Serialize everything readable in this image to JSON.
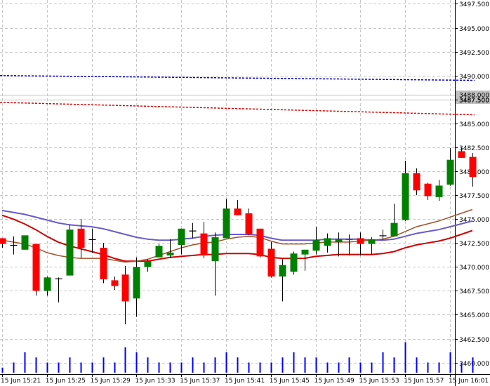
{
  "chart_data": {
    "type": "candlestick",
    "grid": true,
    "colors": {
      "background": "#ffffff",
      "grid": "#c8c8c8",
      "bull": "#008000",
      "bear": "#ff0000",
      "doji": "#000000",
      "volume": "#0000ff",
      "ma_fast": "#a0522d",
      "ma_mid": "#d00000",
      "ma_slow": "#6a5acd",
      "level_upper": "#0000cc",
      "level_lower": "#dd0000"
    },
    "y_ticks": [
      "3497.500",
      "3495.000",
      "3492.500",
      "3490.000",
      "3487.500",
      "3485.000",
      "3482.500",
      "3480.000",
      "3477.500",
      "3475.000",
      "3472.500",
      "3470.000",
      "3467.500",
      "3465.000",
      "3462.500",
      "3460.000"
    ],
    "ylim": [
      3458.8,
      3497.9
    ],
    "x_ticks": [
      {
        "label": "15 Jun 15:21",
        "index": 0
      },
      {
        "label": "15 Jun 15:25",
        "index": 4
      },
      {
        "label": "15 Jun 15:29",
        "index": 8
      },
      {
        "label": "15 Jun 15:33",
        "index": 12
      },
      {
        "label": "15 Jun 15:37",
        "index": 16
      },
      {
        "label": "15 Jun 15:41",
        "index": 20
      },
      {
        "label": "15 Jun 15:45",
        "index": 24
      },
      {
        "label": "15 Jun 15:49",
        "index": 28
      },
      {
        "label": "15 Jun 15:53",
        "index": 32
      },
      {
        "label": "15 Jun 15:57",
        "index": 36
      },
      {
        "label": "15 Jun 16:01",
        "index": 40
      }
    ],
    "price_labels": [
      {
        "text": "3488.000",
        "value": 3488.0
      },
      {
        "text": "3487.500",
        "value": 3487.5
      }
    ],
    "candles": [
      {
        "o": 3473.0,
        "h": 3473.0,
        "l": 3472.0,
        "c": 3472.4
      },
      {
        "o": 3472.3,
        "h": 3473.2,
        "l": 3471.3,
        "c": 3472.3
      },
      {
        "o": 3471.8,
        "h": 3473.3,
        "l": 3471.8,
        "c": 3473.3
      },
      {
        "o": 3472.4,
        "h": 3472.4,
        "l": 3467.0,
        "c": 3467.5
      },
      {
        "o": 3467.5,
        "h": 3469.0,
        "l": 3467.0,
        "c": 3468.9
      },
      {
        "o": 3468.8,
        "h": 3468.9,
        "l": 3466.3,
        "c": 3468.8
      },
      {
        "o": 3469.1,
        "h": 3474.4,
        "l": 3469.1,
        "c": 3473.9
      },
      {
        "o": 3474.0,
        "h": 3475.0,
        "l": 3470.9,
        "c": 3472.0
      },
      {
        "o": 3472.9,
        "h": 3474.0,
        "l": 3471.5,
        "c": 3472.9
      },
      {
        "o": 3472.0,
        "h": 3472.5,
        "l": 3468.3,
        "c": 3468.7
      },
      {
        "o": 3468.6,
        "h": 3469.0,
        "l": 3467.6,
        "c": 3468.0
      },
      {
        "o": 3469.2,
        "h": 3470.1,
        "l": 3464.0,
        "c": 3466.4
      },
      {
        "o": 3466.7,
        "h": 3471.0,
        "l": 3464.8,
        "c": 3470.0
      },
      {
        "o": 3470.0,
        "h": 3470.8,
        "l": 3469.5,
        "c": 3470.6
      },
      {
        "o": 3471.0,
        "h": 3472.4,
        "l": 3471.0,
        "c": 3472.2
      },
      {
        "o": 3471.2,
        "h": 3472.9,
        "l": 3470.9,
        "c": 3471.5
      },
      {
        "o": 3472.3,
        "h": 3474.0,
        "l": 3471.3,
        "c": 3474.0
      },
      {
        "o": 3473.8,
        "h": 3474.6,
        "l": 3473.0,
        "c": 3473.8
      },
      {
        "o": 3473.5,
        "h": 3474.7,
        "l": 3470.9,
        "c": 3471.2
      },
      {
        "o": 3470.6,
        "h": 3473.6,
        "l": 3467.0,
        "c": 3473.1
      },
      {
        "o": 3473.0,
        "h": 3477.1,
        "l": 3473.0,
        "c": 3476.1
      },
      {
        "o": 3476.1,
        "h": 3477.0,
        "l": 3475.4,
        "c": 3475.4
      },
      {
        "o": 3475.6,
        "h": 3476.1,
        "l": 3473.3,
        "c": 3473.4
      },
      {
        "o": 3474.0,
        "h": 3474.0,
        "l": 3471.0,
        "c": 3471.1
      },
      {
        "o": 3471.9,
        "h": 3472.6,
        "l": 3468.9,
        "c": 3469.0
      },
      {
        "o": 3469.0,
        "h": 3470.8,
        "l": 3466.4,
        "c": 3470.2
      },
      {
        "o": 3469.5,
        "h": 3471.6,
        "l": 3469.2,
        "c": 3471.4
      },
      {
        "o": 3471.3,
        "h": 3471.8,
        "l": 3469.6,
        "c": 3471.8
      },
      {
        "o": 3471.7,
        "h": 3474.2,
        "l": 3471.3,
        "c": 3472.8
      },
      {
        "o": 3472.2,
        "h": 3473.5,
        "l": 3471.5,
        "c": 3473.0
      },
      {
        "o": 3472.6,
        "h": 3473.6,
        "l": 3471.1,
        "c": 3472.9
      },
      {
        "o": 3472.8,
        "h": 3473.4,
        "l": 3471.2,
        "c": 3472.9
      },
      {
        "o": 3473.0,
        "h": 3473.6,
        "l": 3471.2,
        "c": 3472.4
      },
      {
        "o": 3472.4,
        "h": 3473.1,
        "l": 3471.3,
        "c": 3472.9
      },
      {
        "o": 3473.3,
        "h": 3473.9,
        "l": 3472.8,
        "c": 3473.3
      },
      {
        "o": 3473.2,
        "h": 3476.6,
        "l": 3473.2,
        "c": 3474.6
      },
      {
        "o": 3474.9,
        "h": 3481.1,
        "l": 3474.8,
        "c": 3479.8
      },
      {
        "o": 3479.8,
        "h": 3480.3,
        "l": 3477.5,
        "c": 3478.0
      },
      {
        "o": 3478.7,
        "h": 3478.8,
        "l": 3477.0,
        "c": 3477.4
      },
      {
        "o": 3477.3,
        "h": 3479.1,
        "l": 3476.9,
        "c": 3478.5
      },
      {
        "o": 3478.6,
        "h": 3482.4,
        "l": 3478.5,
        "c": 3481.2
      },
      {
        "o": 3482.1,
        "h": 3482.5,
        "l": 3481.4,
        "c": 3481.4
      },
      {
        "o": 3481.5,
        "h": 3481.9,
        "l": 3478.4,
        "c": 3479.4
      }
    ],
    "volume": [
      1,
      2,
      4,
      3,
      2,
      2,
      3,
      2,
      2,
      3,
      2,
      5,
      4,
      3,
      2,
      2,
      2,
      3,
      2,
      3,
      4,
      3,
      2,
      2,
      2,
      3,
      4,
      3,
      3,
      2,
      2,
      3,
      2,
      2,
      4,
      3,
      6,
      3,
      2,
      2,
      4,
      2,
      3
    ],
    "volume_max": 8,
    "lines": {
      "ma_slow": [
        3475.9,
        3475.7,
        3475.5,
        3475.2,
        3474.9,
        3474.6,
        3474.4,
        3474.3,
        3474.2,
        3474.0,
        3473.7,
        3473.4,
        3473.1,
        3472.9,
        3472.8,
        3472.8,
        3472.9,
        3473.0,
        3473.2,
        3473.3,
        3473.4,
        3473.4,
        3473.4,
        3473.3,
        3473.0,
        3472.8,
        3472.8,
        3472.8,
        3472.8,
        3472.9,
        3472.9,
        3472.9,
        3472.9,
        3472.8,
        3472.8,
        3472.9,
        3473.2,
        3473.5,
        3473.7,
        3473.9,
        3474.2,
        3474.5,
        3474.8
      ],
      "ma_mid": [
        3475.4,
        3475.0,
        3474.5,
        3473.9,
        3473.2,
        3472.6,
        3472.2,
        3471.9,
        3471.6,
        3471.3,
        3470.9,
        3470.6,
        3470.6,
        3470.6,
        3470.8,
        3471.0,
        3471.1,
        3471.2,
        3471.3,
        3471.3,
        3471.4,
        3471.4,
        3471.4,
        3471.3,
        3471.0,
        3470.9,
        3470.9,
        3470.9,
        3471.1,
        3471.2,
        3471.3,
        3471.3,
        3471.3,
        3471.3,
        3471.4,
        3471.6,
        3472.0,
        3472.3,
        3472.5,
        3472.7,
        3473.0,
        3473.4,
        3473.8
      ],
      "ma_fast": [
        3472.8,
        3472.6,
        3472.4,
        3472.0,
        3471.5,
        3471.2,
        3471.0,
        3470.9,
        3470.9,
        3470.9,
        3470.7,
        3470.5,
        3470.6,
        3470.8,
        3471.2,
        3471.6,
        3472.0,
        3472.3,
        3472.5,
        3472.6,
        3472.9,
        3473.1,
        3473.2,
        3473.1,
        3472.7,
        3472.4,
        3472.4,
        3472.4,
        3472.5,
        3472.6,
        3472.6,
        3472.6,
        3472.7,
        3472.8,
        3472.9,
        3473.2,
        3473.7,
        3474.2,
        3474.5,
        3474.8,
        3475.2,
        3475.6,
        3476.0
      ]
    },
    "levels": [
      {
        "name": "level_upper",
        "start": 3490.0,
        "end": 3489.5
      },
      {
        "name": "level_lower",
        "start": 3487.2,
        "end": 3485.9
      }
    ]
  }
}
